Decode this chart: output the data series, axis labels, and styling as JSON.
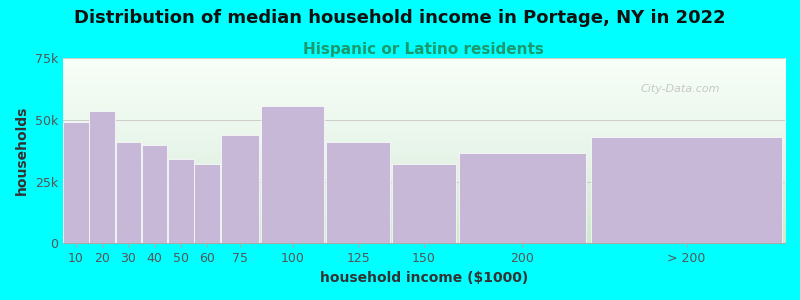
{
  "title": "Distribution of median household income in Portage, NY in 2022",
  "subtitle": "Hispanic or Latino residents",
  "xlabel": "household income ($1000)",
  "ylabel": "households",
  "categories": [
    "10",
    "20",
    "30",
    "40",
    "50",
    "60",
    "75",
    "100",
    "125",
    "150",
    "200",
    "> 200"
  ],
  "left_edges": [
    0,
    10,
    20,
    30,
    40,
    50,
    60,
    75,
    100,
    125,
    150,
    200
  ],
  "widths": [
    10,
    10,
    10,
    10,
    10,
    10,
    15,
    25,
    25,
    25,
    50,
    75
  ],
  "values": [
    49000,
    53500,
    41000,
    40000,
    34000,
    32000,
    44000,
    55500,
    41000,
    32000,
    36500,
    43000
  ],
  "bar_color": "#C8B8D8",
  "background_color": "#00FFFF",
  "ytick_labels": [
    "0",
    "25k",
    "50k",
    "75k"
  ],
  "ytick_values": [
    0,
    25000,
    50000,
    75000
  ],
  "ylim": [
    0,
    75000
  ],
  "xlim": [
    0,
    275
  ],
  "watermark": "City-Data.com",
  "title_fontsize": 13,
  "subtitle_fontsize": 11,
  "subtitle_color": "#1a9a6e",
  "axis_label_fontsize": 10,
  "tick_fontsize": 9,
  "tick_positions": [
    5,
    15,
    25,
    35,
    45,
    55,
    67.5,
    87.5,
    112.5,
    137.5,
    175,
    237.5
  ],
  "tick_labels": [
    "10",
    "20",
    "30",
    "40",
    "50",
    "60",
    "75",
    "100",
    "125",
    "150",
    "200",
    "> 200"
  ]
}
